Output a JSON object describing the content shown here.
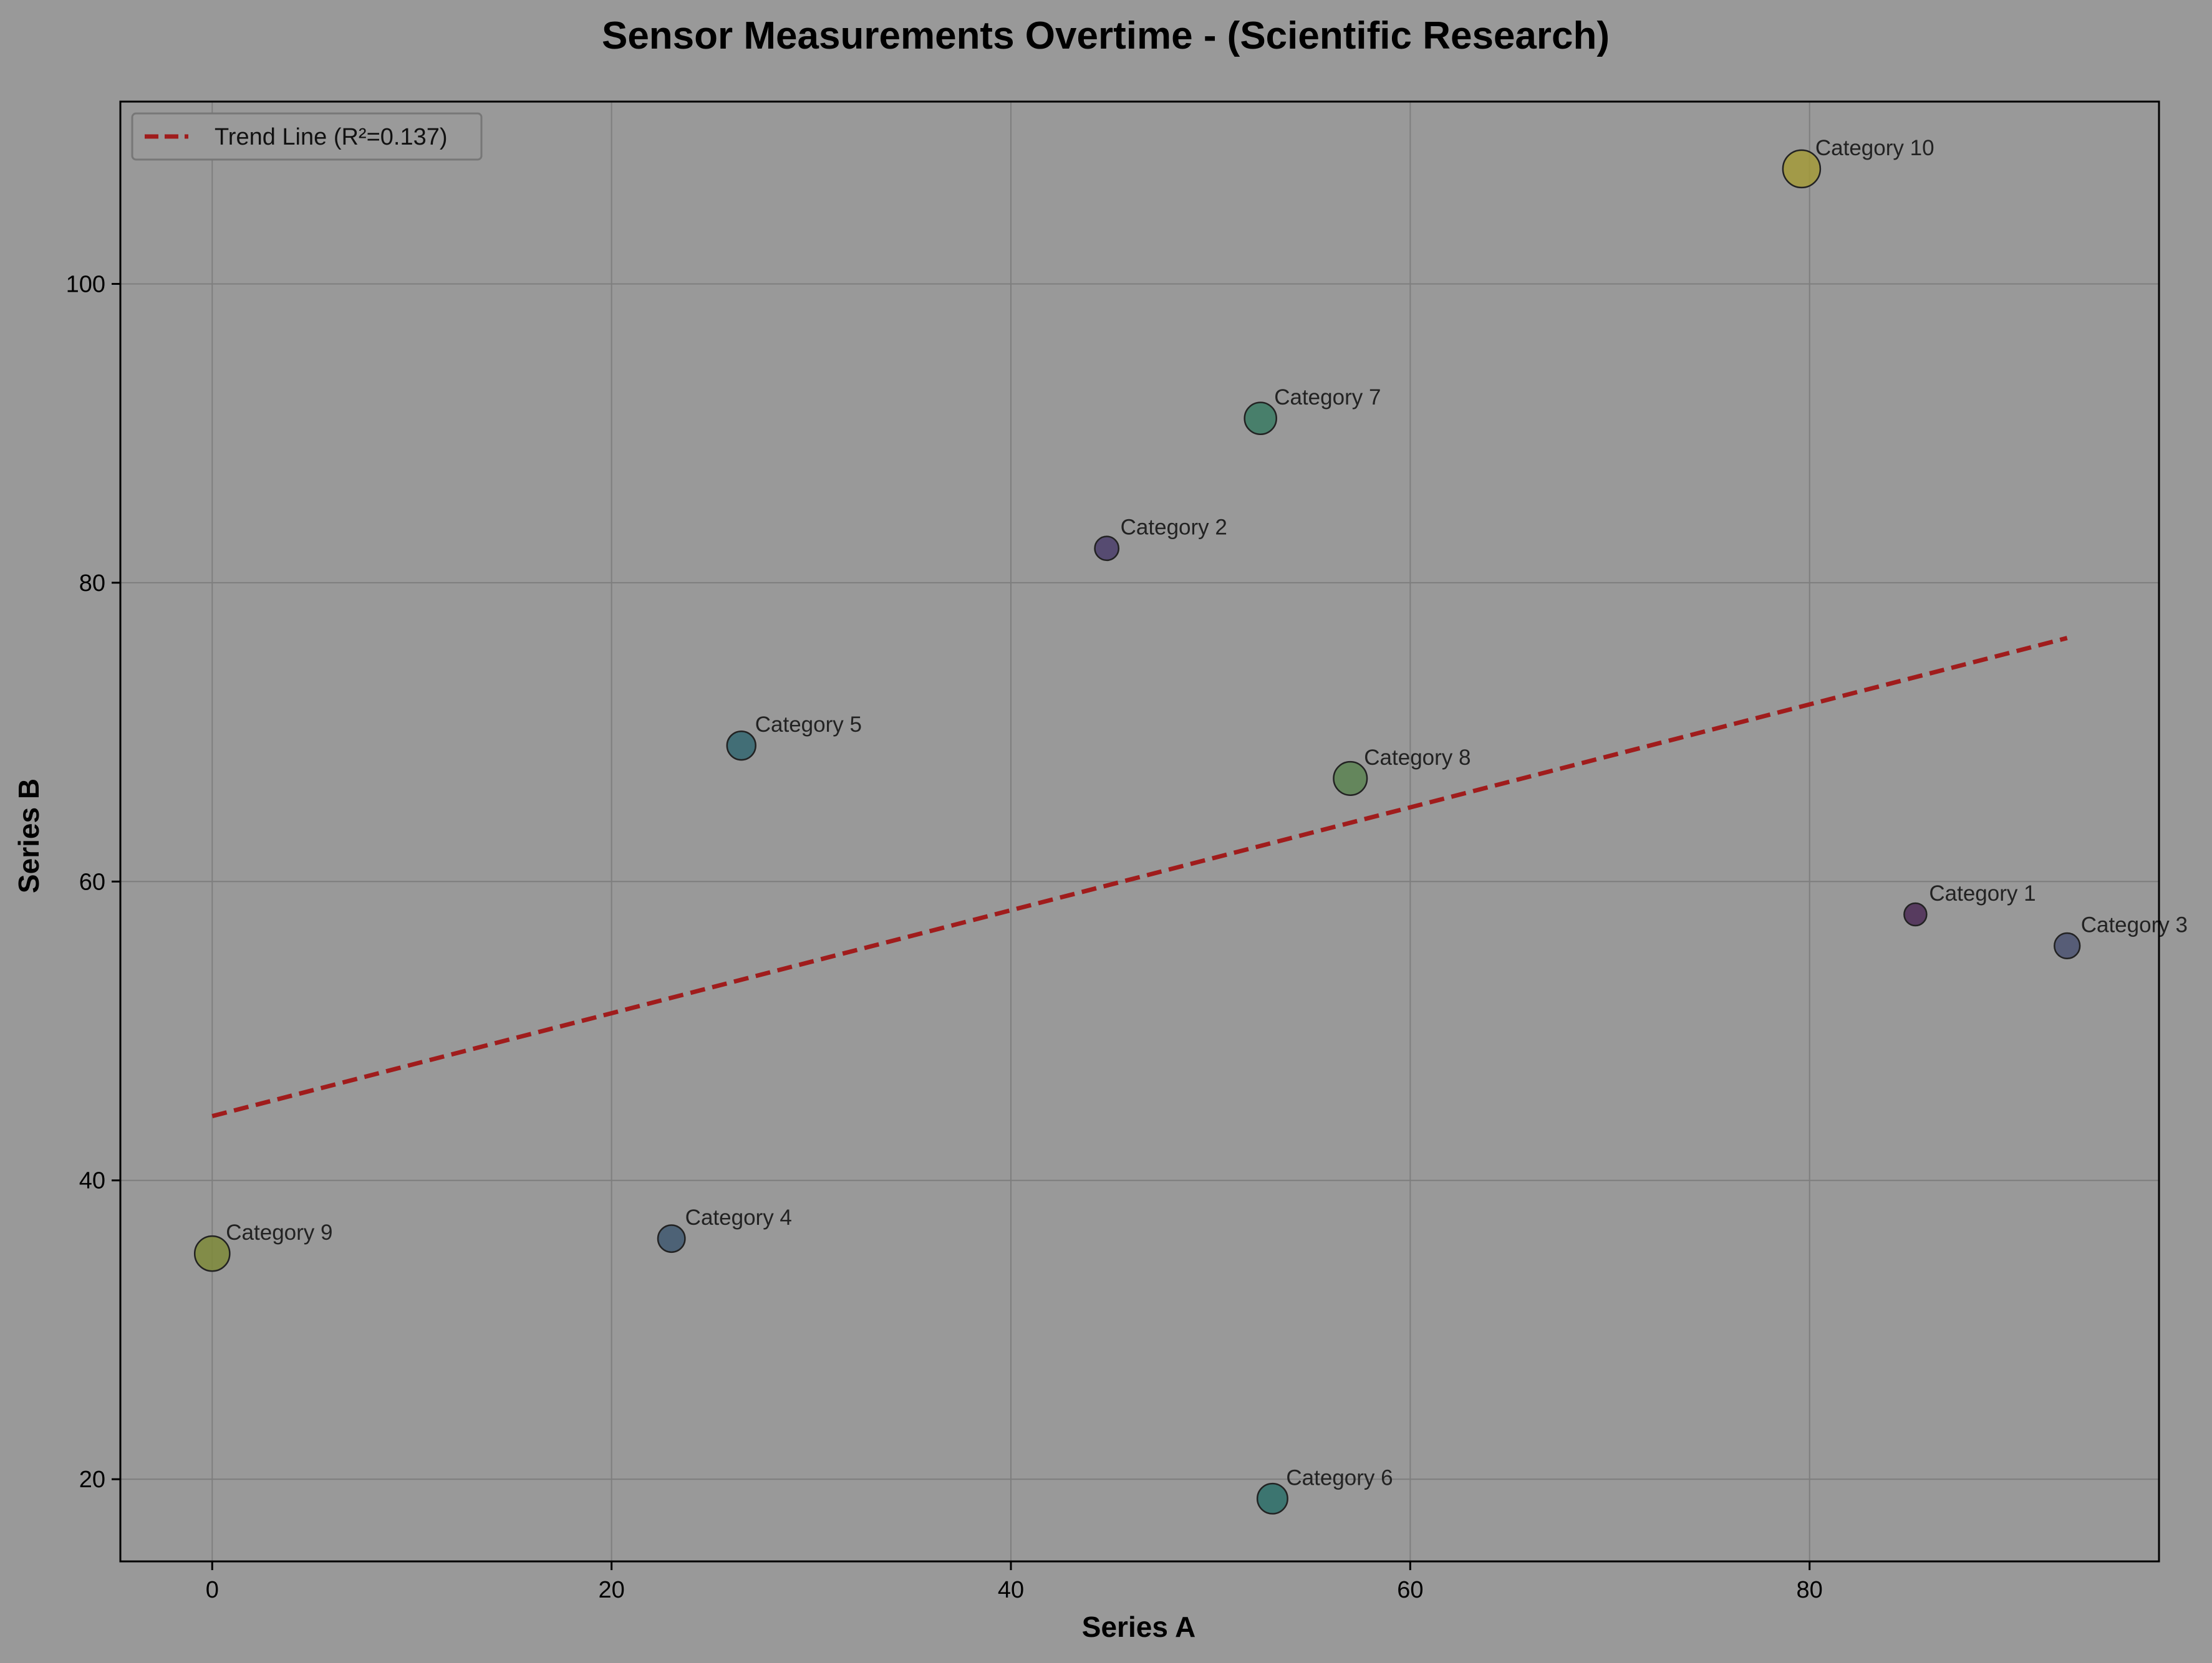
{
  "chart_data": {
    "type": "scatter",
    "title": "Sensor Measurements Overtime - (Scientific Research)",
    "xlabel": "Series A",
    "ylabel": "Series B",
    "xlim": [
      -4.6,
      97.5
    ],
    "ylim": [
      14.5,
      112.2
    ],
    "xticks": [
      0,
      20,
      40,
      60,
      80
    ],
    "yticks": [
      20,
      40,
      60,
      80,
      100
    ],
    "grid": true,
    "legend_position": "top-left",
    "background_color": "#999999",
    "trend_line": {
      "label": "Trend Line (R²=0.137)",
      "color": "#a01c1c",
      "style": "dashed",
      "start": [
        0,
        44.3
      ],
      "end": [
        92.9,
        76.3
      ]
    },
    "points": [
      {
        "label": "Category 1",
        "x": 85.3,
        "y": 57.8,
        "size": 0.25,
        "color": "#4b2a55"
      },
      {
        "label": "Category 2",
        "x": 44.8,
        "y": 82.3,
        "size": 0.32,
        "color": "#4a3d6a"
      },
      {
        "label": "Category 3",
        "x": 92.9,
        "y": 55.7,
        "size": 0.4,
        "color": "#4b5271"
      },
      {
        "label": "Category 4",
        "x": 23.0,
        "y": 36.1,
        "size": 0.48,
        "color": "#3f5870"
      },
      {
        "label": "Category 5",
        "x": 26.5,
        "y": 69.1,
        "size": 0.56,
        "color": "#336670"
      },
      {
        "label": "Category 6",
        "x": 53.1,
        "y": 18.7,
        "size": 0.64,
        "color": "#2b6e68"
      },
      {
        "label": "Category 7",
        "x": 52.5,
        "y": 91.0,
        "size": 0.72,
        "color": "#3a7a63"
      },
      {
        "label": "Category 8",
        "x": 57.0,
        "y": 66.9,
        "size": 0.8,
        "color": "#5a8251"
      },
      {
        "label": "Category 9",
        "x": 0.0,
        "y": 35.1,
        "size": 0.88,
        "color": "#7e8a3a"
      },
      {
        "label": "Category 10",
        "x": 79.6,
        "y": 107.7,
        "size": 1.0,
        "color": "#a39a3a"
      }
    ]
  }
}
